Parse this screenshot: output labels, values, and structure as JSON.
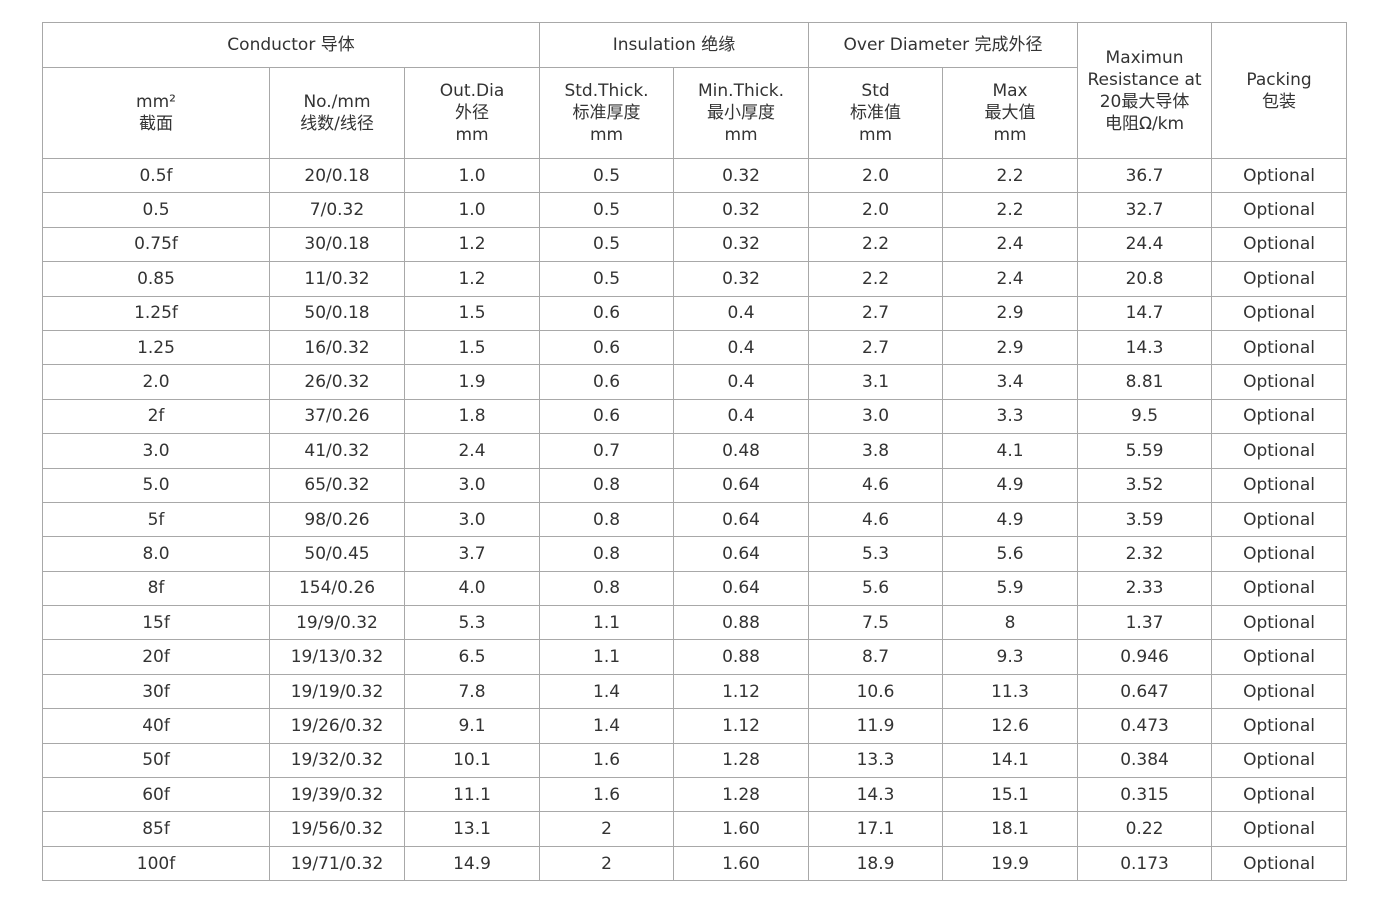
{
  "header": {
    "groups": {
      "conductor": "Conductor 导体",
      "insulation": "Insulation 绝缘",
      "over_diameter": "Over Diameter 完成外径"
    },
    "columns": {
      "area": [
        "mm²",
        "截面"
      ],
      "strands": [
        "No./mm",
        "线数/线径"
      ],
      "out_dia": [
        "Out.Dia",
        "外径",
        "mm"
      ],
      "std_thick": [
        "Std.Thick.",
        "标准厚度",
        "mm"
      ],
      "min_thick": [
        "Min.Thick.",
        "最小厚度",
        "mm"
      ],
      "od_std": [
        "Std",
        "标准值",
        "mm"
      ],
      "od_max": [
        "Max",
        "最大值",
        "mm"
      ],
      "resistance": [
        "Maximun",
        "Resistance at",
        "20最大导体",
        "电阻Ω/km"
      ],
      "packing": [
        "Packing",
        "包装"
      ]
    }
  },
  "rows": [
    [
      "0.5f",
      "20/0.18",
      "1.0",
      "0.5",
      "0.32",
      "2.0",
      "2.2",
      "36.7",
      "Optional"
    ],
    [
      "0.5",
      "7/0.32",
      "1.0",
      "0.5",
      "0.32",
      "2.0",
      "2.2",
      "32.7",
      "Optional"
    ],
    [
      "0.75f",
      "30/0.18",
      "1.2",
      "0.5",
      "0.32",
      "2.2",
      "2.4",
      "24.4",
      "Optional"
    ],
    [
      "0.85",
      "11/0.32",
      "1.2",
      "0.5",
      "0.32",
      "2.2",
      "2.4",
      "20.8",
      "Optional"
    ],
    [
      "1.25f",
      "50/0.18",
      "1.5",
      "0.6",
      "0.4",
      "2.7",
      "2.9",
      "14.7",
      "Optional"
    ],
    [
      "1.25",
      "16/0.32",
      "1.5",
      "0.6",
      "0.4",
      "2.7",
      "2.9",
      "14.3",
      "Optional"
    ],
    [
      "2.0",
      "26/0.32",
      "1.9",
      "0.6",
      "0.4",
      "3.1",
      "3.4",
      "8.81",
      "Optional"
    ],
    [
      "2f",
      "37/0.26",
      "1.8",
      "0.6",
      "0.4",
      "3.0",
      "3.3",
      "9.5",
      "Optional"
    ],
    [
      "3.0",
      "41/0.32",
      "2.4",
      "0.7",
      "0.48",
      "3.8",
      "4.1",
      "5.59",
      "Optional"
    ],
    [
      "5.0",
      "65/0.32",
      "3.0",
      "0.8",
      "0.64",
      "4.6",
      "4.9",
      "3.52",
      "Optional"
    ],
    [
      "5f",
      "98/0.26",
      "3.0",
      "0.8",
      "0.64",
      "4.6",
      "4.9",
      "3.59",
      "Optional"
    ],
    [
      "8.0",
      "50/0.45",
      "3.7",
      "0.8",
      "0.64",
      "5.3",
      "5.6",
      "2.32",
      "Optional"
    ],
    [
      "8f",
      "154/0.26",
      "4.0",
      "0.8",
      "0.64",
      "5.6",
      "5.9",
      "2.33",
      "Optional"
    ],
    [
      "15f",
      "19/9/0.32",
      "5.3",
      "1.1",
      "0.88",
      "7.5",
      "8",
      "1.37",
      "Optional"
    ],
    [
      "20f",
      "19/13/0.32",
      "6.5",
      "1.1",
      "0.88",
      "8.7",
      "9.3",
      "0.946",
      "Optional"
    ],
    [
      "30f",
      "19/19/0.32",
      "7.8",
      "1.4",
      "1.12",
      "10.6",
      "11.3",
      "0.647",
      "Optional"
    ],
    [
      "40f",
      "19/26/0.32",
      "9.1",
      "1.4",
      "1.12",
      "11.9",
      "12.6",
      "0.473",
      "Optional"
    ],
    [
      "50f",
      "19/32/0.32",
      "10.1",
      "1.6",
      "1.28",
      "13.3",
      "14.1",
      "0.384",
      "Optional"
    ],
    [
      "60f",
      "19/39/0.32",
      "11.1",
      "1.6",
      "1.28",
      "14.3",
      "15.1",
      "0.315",
      "Optional"
    ],
    [
      "85f",
      "19/56/0.32",
      "13.1",
      "2",
      "1.60",
      "17.1",
      "18.1",
      "0.22",
      "Optional"
    ],
    [
      "100f",
      "19/71/0.32",
      "14.9",
      "2",
      "1.60",
      "18.9",
      "19.9",
      "0.173",
      "Optional"
    ]
  ]
}
